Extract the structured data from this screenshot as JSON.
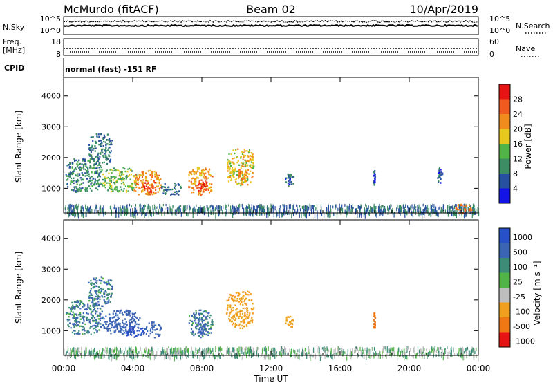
{
  "header": {
    "station": "McMurdo (fitACF)",
    "beam": "Beam 02",
    "date": "10/Apr/2019"
  },
  "noise_panel": {
    "left_label": "N.Sky",
    "right_label": "N.Search",
    "left_ticks": [
      "10^5",
      "10^0"
    ],
    "right_ticks": [
      "10^5",
      "10^0"
    ]
  },
  "freq_panel": {
    "left_label_1": "Freq.",
    "left_label_2": "[MHz]",
    "right_label": "Nave",
    "left_ticks": [
      "18",
      "8"
    ],
    "right_ticks": [
      "60",
      "0"
    ]
  },
  "cpid": {
    "label": "CPID",
    "text": "normal (fast) -151 RF"
  },
  "colors": {
    "power_scale": [
      "#1414e6",
      "#2850a0",
      "#3c8c64",
      "#50b446",
      "#e6c81e",
      "#f08c1e",
      "#f05a1e",
      "#e61414"
    ],
    "velocity_scale": [
      "#2850c8",
      "#3c64b4",
      "#3c8c78",
      "#50b446",
      "#bebebe",
      "#f0a01e",
      "#f07814",
      "#e61414"
    ]
  },
  "chart_data": [
    {
      "type": "heatmap",
      "name": "power",
      "ylabel": "Slant Range [km]",
      "yticks": [
        "1000",
        "2000",
        "3000",
        "4000"
      ],
      "ylim": [
        200,
        4600
      ],
      "xlim": [
        0,
        24
      ],
      "colorbar": {
        "label": "Power [dB]",
        "tick_labels": [
          "4",
          "8",
          "12",
          "16",
          "20",
          "24",
          "28"
        ],
        "range": [
          0,
          32
        ]
      },
      "echo_regions": [
        {
          "t_start": 0.1,
          "t_end": 2.2,
          "r_start": 900,
          "r_end": 2000,
          "value": 10
        },
        {
          "t_start": 1.4,
          "t_end": 2.8,
          "r_start": 1800,
          "r_end": 2800,
          "value": 8
        },
        {
          "t_start": 2.2,
          "t_end": 4.2,
          "r_start": 900,
          "r_end": 1700,
          "value": 14
        },
        {
          "t_start": 4.0,
          "t_end": 5.6,
          "r_start": 800,
          "r_end": 1600,
          "value": 22
        },
        {
          "t_start": 4.6,
          "t_end": 5.3,
          "r_start": 900,
          "r_end": 1300,
          "value": 28
        },
        {
          "t_start": 5.6,
          "t_end": 6.8,
          "r_start": 800,
          "r_end": 1200,
          "value": 8
        },
        {
          "t_start": 7.2,
          "t_end": 8.6,
          "r_start": 800,
          "r_end": 1700,
          "value": 22
        },
        {
          "t_start": 7.6,
          "t_end": 8.3,
          "r_start": 900,
          "r_end": 1300,
          "value": 30
        },
        {
          "t_start": 9.4,
          "t_end": 11.0,
          "r_start": 1100,
          "r_end": 2300,
          "value": 18
        },
        {
          "t_start": 10.0,
          "t_end": 10.6,
          "r_start": 1300,
          "r_end": 1700,
          "value": 24
        },
        {
          "t_start": 12.8,
          "t_end": 13.3,
          "r_start": 1100,
          "r_end": 1500,
          "value": 6
        },
        {
          "t_start": 17.9,
          "t_end": 18.0,
          "r_start": 1100,
          "r_end": 1600,
          "value": 6
        },
        {
          "t_start": 21.6,
          "t_end": 21.9,
          "r_start": 1200,
          "r_end": 1700,
          "value": 6
        },
        {
          "t_start": 0.0,
          "t_end": 24.0,
          "r_start": 200,
          "r_end": 500,
          "value": 8
        },
        {
          "t_start": 22.6,
          "t_end": 23.6,
          "r_start": 200,
          "r_end": 500,
          "value": 24
        }
      ]
    },
    {
      "type": "heatmap",
      "name": "velocity",
      "ylabel": "Slant Range [km]",
      "yticks": [
        "1000",
        "2000",
        "3000",
        "4000"
      ],
      "ylim": [
        200,
        4600
      ],
      "xlim": [
        0,
        24
      ],
      "xlabel": "Time UT",
      "xticks": [
        "00:00",
        "04:00",
        "08:00",
        "12:00",
        "16:00",
        "20:00",
        "00:00"
      ],
      "colorbar": {
        "label": "Velocity [m s⁻¹]",
        "tick_labels": [
          "1000",
          "500",
          "100",
          "25",
          "-25",
          "-100",
          "-500",
          "-1000"
        ]
      },
      "echo_regions": [
        {
          "t_start": 0.1,
          "t_end": 2.2,
          "r_start": 900,
          "r_end": 2000,
          "value": 100
        },
        {
          "t_start": 1.4,
          "t_end": 2.8,
          "r_start": 1800,
          "r_end": 2800,
          "value": 100
        },
        {
          "t_start": 2.2,
          "t_end": 4.4,
          "r_start": 900,
          "r_end": 1700,
          "value": 300
        },
        {
          "t_start": 3.4,
          "t_end": 4.6,
          "r_start": 800,
          "r_end": 1200,
          "value": 800
        },
        {
          "t_start": 4.6,
          "t_end": 5.6,
          "r_start": 800,
          "r_end": 1300,
          "value": 300
        },
        {
          "t_start": 7.2,
          "t_end": 8.6,
          "r_start": 800,
          "r_end": 1700,
          "value": 100
        },
        {
          "t_start": 7.6,
          "t_end": 8.2,
          "r_start": 900,
          "r_end": 1400,
          "value": 300
        },
        {
          "t_start": 9.4,
          "t_end": 11.0,
          "r_start": 1100,
          "r_end": 2300,
          "value": -300
        },
        {
          "t_start": 12.8,
          "t_end": 13.3,
          "r_start": 1100,
          "r_end": 1500,
          "value": -300
        },
        {
          "t_start": 17.9,
          "t_end": 18.0,
          "r_start": 1100,
          "r_end": 1600,
          "value": -700
        },
        {
          "t_start": 0.0,
          "t_end": 24.0,
          "r_start": 200,
          "r_end": 500,
          "value": 0
        }
      ]
    }
  ]
}
